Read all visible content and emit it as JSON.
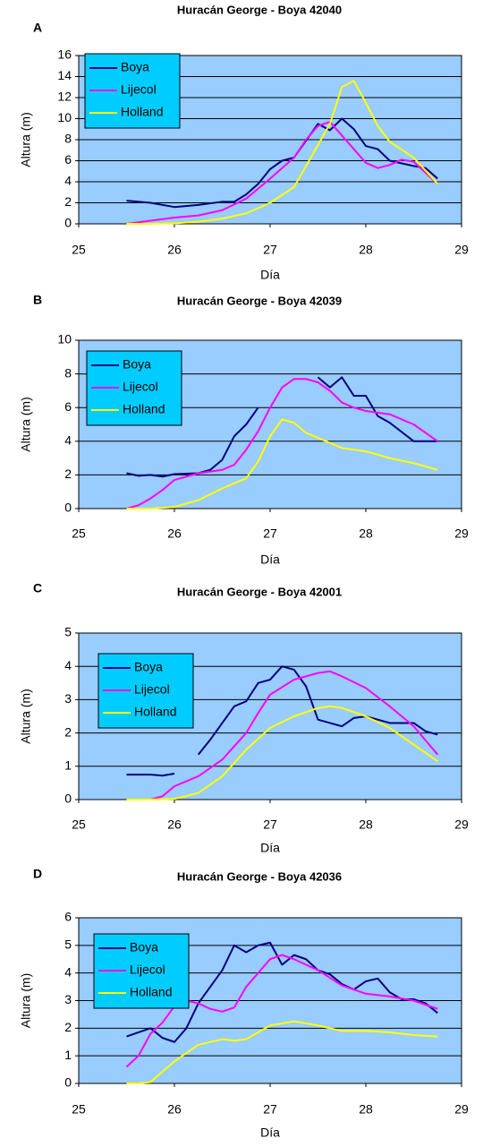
{
  "chart_data": [
    {
      "type": "line",
      "panel_label": "A",
      "title": "Huracán George - Boya 42040",
      "x_label": "Día",
      "y_label": "Altura (m)",
      "xlim": [
        25,
        29
      ],
      "xticks": [
        25,
        26,
        27,
        28,
        29
      ],
      "ylim": [
        0,
        16
      ],
      "yticks": [
        0,
        2,
        4,
        6,
        8,
        10,
        12,
        14,
        16
      ],
      "grid": true,
      "legend": "upper left",
      "background": "#99ccff",
      "series": [
        {
          "name": "Boya",
          "color": "#000080",
          "x": [
            25.5,
            25.75,
            26,
            26.25,
            26.5,
            26.625,
            26.75,
            26.875,
            27,
            27.125,
            27.25,
            27.5,
            27.625,
            27.75,
            27.875,
            28,
            28.125,
            28.25,
            28.5,
            28.625,
            28.75
          ],
          "values": [
            2.2,
            2.0,
            1.6,
            1.8,
            2.1,
            2.1,
            2.8,
            3.8,
            5.2,
            6.0,
            6.3,
            9.5,
            8.9,
            10,
            9.0,
            7.4,
            7.1,
            6.0,
            5.5,
            5.3,
            4.3
          ]
        },
        {
          "name": "Lijecol",
          "color": "#ff00ff",
          "x": [
            25.5,
            25.75,
            26,
            26.25,
            26.5,
            26.75,
            27,
            27.25,
            27.375,
            27.5,
            27.625,
            27.75,
            28,
            28.125,
            28.25,
            28.375,
            28.5,
            28.75
          ],
          "values": [
            0,
            0.3,
            0.6,
            0.8,
            1.3,
            2.4,
            4.3,
            6.3,
            8,
            9.3,
            9.7,
            8.4,
            5.8,
            5.3,
            5.6,
            6.1,
            5.9,
            3.8
          ]
        },
        {
          "name": "Holland",
          "color": "#ffff00",
          "x": [
            25.5,
            25.75,
            26,
            26.25,
            26.5,
            26.75,
            27,
            27.25,
            27.375,
            27.5,
            27.625,
            27.75,
            27.875,
            28,
            28.125,
            28.25,
            28.5,
            28.75
          ],
          "values": [
            0,
            0,
            0.05,
            0.2,
            0.5,
            1.0,
            2.0,
            3.5,
            5.5,
            7.5,
            9.5,
            13,
            13.6,
            11.5,
            9.3,
            7.8,
            6.3,
            3.8
          ]
        }
      ]
    },
    {
      "type": "line",
      "panel_label": "B",
      "title": "Huracán George - Boya 42039",
      "x_label": "Día",
      "y_label": "Altura (m)",
      "xlim": [
        25,
        29
      ],
      "xticks": [
        25,
        26,
        27,
        28,
        29
      ],
      "ylim": [
        0,
        10
      ],
      "yticks": [
        0,
        2,
        4,
        6,
        8,
        10
      ],
      "grid": true,
      "legend": "upper left",
      "background": "#99ccff",
      "series": [
        {
          "name": "Boya",
          "color": "#000080",
          "x": [
            25.5,
            25.625,
            25.75,
            25.875,
            26,
            26.25,
            26.375,
            26.5,
            26.625,
            26.75,
            26.875,
            27.2,
            27.5,
            27.625,
            27.75,
            27.875,
            28,
            28.125,
            28.25,
            28.5,
            28.75
          ],
          "values": [
            2.1,
            1.95,
            2.0,
            1.9,
            2.05,
            2.1,
            2.3,
            2.9,
            4.3,
            5.0,
            6.0,
            null,
            7.8,
            7.2,
            7.8,
            6.7,
            6.7,
            5.5,
            5.1,
            4.0,
            4.0
          ]
        },
        {
          "name": "Lijecol",
          "color": "#ff00ff",
          "x": [
            25.5,
            25.625,
            25.75,
            25.875,
            26,
            26.25,
            26.5,
            26.625,
            26.75,
            26.875,
            27,
            27.125,
            27.25,
            27.375,
            27.5,
            27.625,
            27.75,
            27.875,
            28,
            28.25,
            28.5,
            28.75
          ],
          "values": [
            0,
            0.2,
            0.6,
            1.1,
            1.7,
            2.1,
            2.3,
            2.6,
            3.5,
            4.6,
            6.0,
            7.2,
            7.7,
            7.7,
            7.5,
            7.0,
            6.3,
            6.0,
            5.8,
            5.6,
            5.0,
            4.0
          ]
        },
        {
          "name": "Holland",
          "color": "#ffff00",
          "x": [
            25.5,
            25.75,
            26,
            26.25,
            26.5,
            26.75,
            26.875,
            27,
            27.125,
            27.25,
            27.375,
            27.5,
            27.75,
            28,
            28.25,
            28.5,
            28.75
          ],
          "values": [
            0,
            0,
            0.1,
            0.5,
            1.2,
            1.8,
            2.8,
            4.3,
            5.3,
            5.1,
            4.5,
            4.2,
            3.6,
            3.4,
            3.0,
            2.7,
            2.3
          ]
        }
      ]
    },
    {
      "type": "line",
      "panel_label": "C",
      "title": "Huracán George - Boya 42001",
      "x_label": "Día",
      "y_label": "Altura (m)",
      "xlim": [
        25,
        29
      ],
      "xticks": [
        25,
        26,
        27,
        28,
        29
      ],
      "ylim": [
        0,
        5
      ],
      "yticks": [
        0,
        1,
        2,
        3,
        4,
        5
      ],
      "grid": true,
      "legend": "upper left",
      "background": "#99ccff",
      "series": [
        {
          "name": "Boya",
          "color": "#000080",
          "x": [
            25.5,
            25.75,
            25.875,
            26,
            26.125,
            26.25,
            26.375,
            26.5,
            26.625,
            26.75,
            26.875,
            27,
            27.125,
            27.25,
            27.375,
            27.5,
            27.625,
            27.75,
            27.875,
            28,
            28.25,
            28.5,
            28.625,
            28.75
          ],
          "values": [
            0.75,
            0.75,
            0.72,
            0.78,
            null,
            1.35,
            1.8,
            2.3,
            2.8,
            2.95,
            3.5,
            3.6,
            4.0,
            3.9,
            3.4,
            2.4,
            2.3,
            2.2,
            2.45,
            2.5,
            2.3,
            2.3,
            2.05,
            1.95
          ]
        },
        {
          "name": "Lijecol",
          "color": "#ff00ff",
          "x": [
            25.5,
            25.75,
            25.875,
            26,
            26.25,
            26.5,
            26.75,
            26.875,
            27,
            27.25,
            27.5,
            27.625,
            27.75,
            28,
            28.25,
            28.5,
            28.75
          ],
          "values": [
            0,
            0,
            0.1,
            0.4,
            0.7,
            1.2,
            2.0,
            2.6,
            3.15,
            3.6,
            3.8,
            3.85,
            3.7,
            3.35,
            2.8,
            2.2,
            1.35
          ]
        },
        {
          "name": "Holland",
          "color": "#ffff00",
          "x": [
            25.5,
            25.75,
            26,
            26.25,
            26.5,
            26.75,
            27,
            27.25,
            27.5,
            27.625,
            27.75,
            28,
            28.25,
            28.5,
            28.75
          ],
          "values": [
            0,
            0,
            0.02,
            0.2,
            0.7,
            1.5,
            2.15,
            2.5,
            2.75,
            2.8,
            2.75,
            2.5,
            2.15,
            1.65,
            1.15
          ]
        }
      ]
    },
    {
      "type": "line",
      "panel_label": "D",
      "title": "Huracán George - Boya 42036",
      "x_label": "Día",
      "y_label": "Altura (m)",
      "xlim": [
        25,
        29
      ],
      "xticks": [
        25,
        26,
        27,
        28,
        29
      ],
      "ylim": [
        0,
        6
      ],
      "yticks": [
        0,
        1,
        2,
        3,
        4,
        5,
        6
      ],
      "grid": true,
      "legend": "upper left",
      "background": "#99ccff",
      "series": [
        {
          "name": "Boya",
          "color": "#000080",
          "x": [
            25.5,
            25.75,
            25.875,
            26,
            26.125,
            26.25,
            26.5,
            26.625,
            26.75,
            26.875,
            27,
            27.125,
            27.25,
            27.375,
            27.5,
            27.625,
            27.75,
            27.875,
            28,
            28.125,
            28.25,
            28.375,
            28.5,
            28.625,
            28.75
          ],
          "values": [
            1.7,
            2.0,
            1.65,
            1.5,
            2.0,
            2.9,
            4.1,
            5.0,
            4.75,
            5.0,
            5.1,
            4.3,
            4.65,
            4.5,
            4.1,
            3.95,
            3.6,
            3.4,
            3.7,
            3.8,
            3.3,
            3.05,
            3.05,
            2.9,
            2.55
          ]
        },
        {
          "name": "Lijecol",
          "color": "#ff00ff",
          "x": [
            25.5,
            25.625,
            25.75,
            25.875,
            26,
            26.125,
            26.25,
            26.375,
            26.5,
            26.625,
            26.75,
            26.875,
            27,
            27.125,
            27.25,
            27.5,
            27.75,
            28,
            28.25,
            28.5,
            28.75
          ],
          "values": [
            0.6,
            1.0,
            1.8,
            2.2,
            2.8,
            3.0,
            2.9,
            2.7,
            2.6,
            2.75,
            3.5,
            4.0,
            4.5,
            4.65,
            4.5,
            4.1,
            3.55,
            3.25,
            3.15,
            3.0,
            2.7
          ]
        },
        {
          "name": "Holland",
          "color": "#ffff00",
          "x": [
            25.5,
            25.625,
            25.75,
            26,
            26.25,
            26.5,
            26.625,
            26.75,
            27,
            27.25,
            27.5,
            27.75,
            28,
            28.25,
            28.5,
            28.75
          ],
          "values": [
            0,
            0,
            0.05,
            0.8,
            1.4,
            1.6,
            1.55,
            1.6,
            2.1,
            2.25,
            2.1,
            1.9,
            1.9,
            1.85,
            1.75,
            1.7
          ]
        }
      ]
    }
  ]
}
